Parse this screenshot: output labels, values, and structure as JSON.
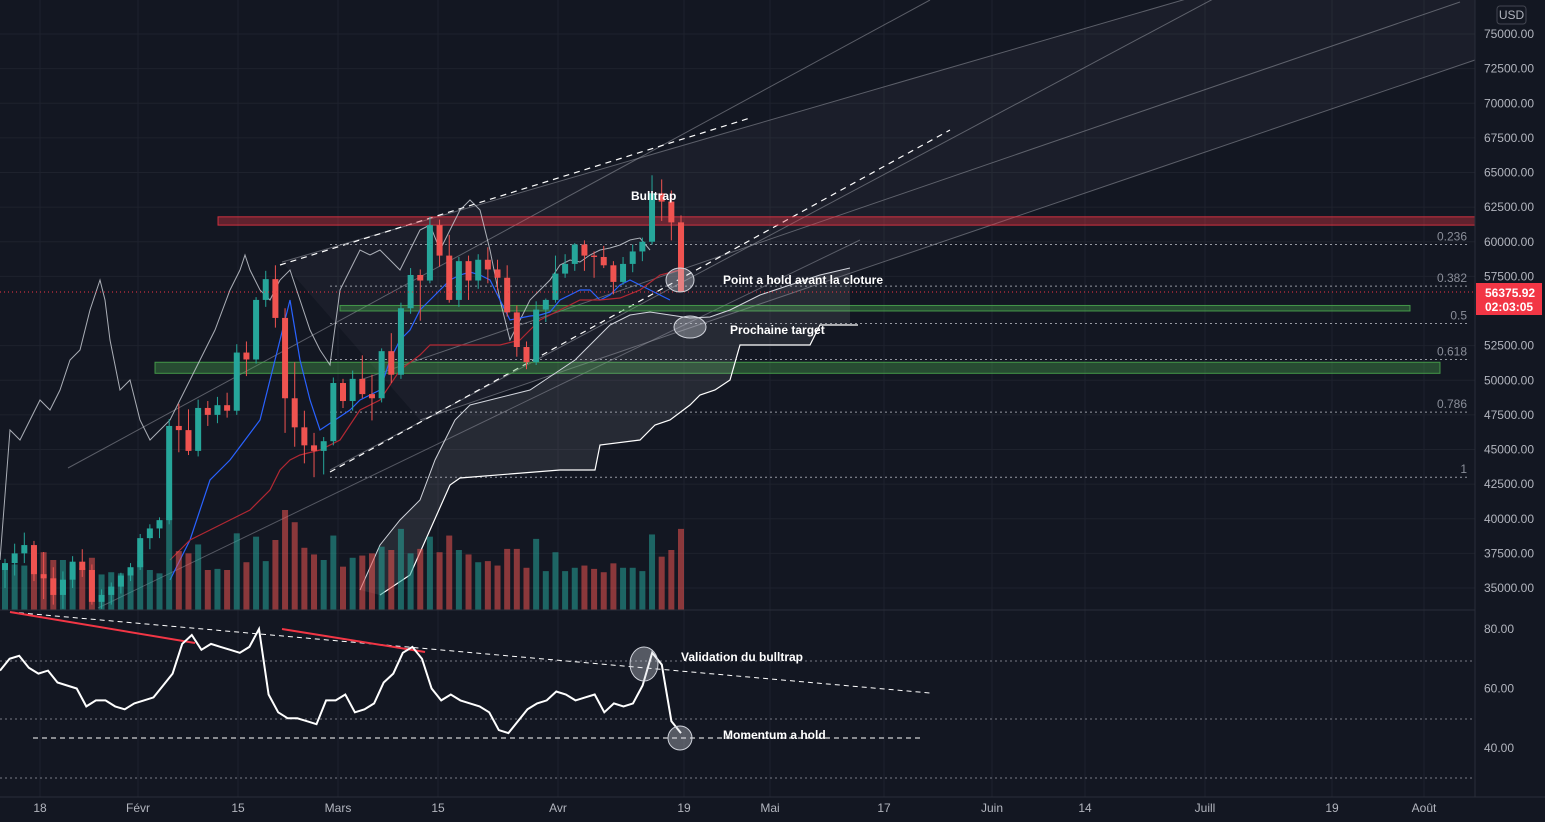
{
  "currency_badge": "USD",
  "chart_data": [
    {
      "type": "candlestick",
      "title": "",
      "y_axis": {
        "ticks": [
          "75000.00",
          "72500.00",
          "70000.00",
          "67500.00",
          "65000.00",
          "62500.00",
          "60000.00",
          "57500.00",
          "52500.00",
          "50000.00",
          "47500.00",
          "45000.00",
          "42500.00",
          "40000.00",
          "37500.00",
          "35000.00"
        ],
        "range": [
          33700,
          76700
        ],
        "position": "right"
      },
      "x_axis": {
        "ticks": [
          "18",
          "Févr",
          "15",
          "Mars",
          "15",
          "Avr",
          "19",
          "Mai",
          "17",
          "Juin",
          "14",
          "Juill",
          "19",
          "Août"
        ]
      },
      "current_price": {
        "value": 56375.92,
        "label": "56375.92",
        "countdown": "02:03:05",
        "color": "#f23645"
      },
      "fib_levels": [
        {
          "label": "0.236",
          "value": 59800
        },
        {
          "label": "0.382",
          "value": 56800
        },
        {
          "label": "0.5",
          "value": 54100
        },
        {
          "label": "0.618",
          "value": 51500
        },
        {
          "label": "0.786",
          "value": 47700
        },
        {
          "label": "1",
          "value": 43000
        }
      ],
      "zones": [
        {
          "name": "resistance",
          "low": 61200,
          "high": 61800,
          "color": "#f23645"
        },
        {
          "name": "support-upper",
          "low": 55000,
          "high": 55400,
          "color": "#4caf50"
        },
        {
          "name": "support-lower",
          "low": 50500,
          "high": 51300,
          "color": "#4caf50"
        }
      ],
      "annotations": [
        {
          "text": "Bulltrap"
        },
        {
          "text": "Point a hold avant la cloture"
        },
        {
          "text": "Prochaine target"
        }
      ],
      "candles_approx": {
        "note_values": "daily OHLC approximated from image",
        "series": [
          [
            36300,
            37100,
            35000,
            36800
          ],
          [
            36800,
            38200,
            35900,
            37500
          ],
          [
            37500,
            39000,
            36800,
            38100
          ],
          [
            38100,
            38400,
            35500,
            36000
          ],
          [
            36000,
            37600,
            34200,
            35700
          ],
          [
            35700,
            36500,
            33800,
            34500
          ],
          [
            34500,
            36200,
            33500,
            35600
          ],
          [
            35600,
            37300,
            35000,
            36900
          ],
          [
            36900,
            37800,
            35800,
            36300
          ],
          [
            36300,
            36700,
            33800,
            34000
          ],
          [
            34000,
            34900,
            33500,
            34500
          ],
          [
            34500,
            35400,
            33800,
            35100
          ],
          [
            35100,
            36100,
            34600,
            35900
          ],
          [
            35900,
            36800,
            35500,
            36500
          ],
          [
            36500,
            38900,
            36300,
            38600
          ],
          [
            38600,
            39600,
            37800,
            39300
          ],
          [
            39300,
            40100,
            38600,
            39900
          ],
          [
            39900,
            47200,
            39600,
            46700
          ],
          [
            46700,
            48300,
            44800,
            46400
          ],
          [
            46400,
            47900,
            44600,
            44900
          ],
          [
            44900,
            48600,
            44500,
            48000
          ],
          [
            48000,
            48500,
            46700,
            47500
          ],
          [
            47500,
            48800,
            46900,
            48200
          ],
          [
            48200,
            49100,
            47300,
            47800
          ],
          [
            47800,
            52600,
            47500,
            52000
          ],
          [
            52000,
            52800,
            50300,
            51500
          ],
          [
            51500,
            56000,
            51200,
            55800
          ],
          [
            55800,
            57900,
            55300,
            57300
          ],
          [
            57300,
            58300,
            53800,
            54500
          ],
          [
            54500,
            55200,
            46200,
            48700
          ],
          [
            48700,
            51300,
            45200,
            46600
          ],
          [
            46600,
            47800,
            44000,
            45300
          ],
          [
            45300,
            46200,
            43000,
            44900
          ],
          [
            44900,
            45900,
            43200,
            45600
          ],
          [
            45600,
            50200,
            45300,
            49800
          ],
          [
            49800,
            50100,
            48000,
            48500
          ],
          [
            48500,
            50700,
            47800,
            50100
          ],
          [
            50100,
            51800,
            48700,
            49000
          ],
          [
            49000,
            50400,
            47100,
            48700
          ],
          [
            48700,
            52300,
            48400,
            52100
          ],
          [
            52100,
            53400,
            49800,
            50400
          ],
          [
            50400,
            55600,
            50100,
            55200
          ],
          [
            55200,
            58100,
            54800,
            57600
          ],
          [
            57600,
            58000,
            54300,
            57200
          ],
          [
            57200,
            61800,
            57000,
            61200
          ],
          [
            61200,
            61600,
            58200,
            59000
          ],
          [
            59000,
            60500,
            55600,
            55800
          ],
          [
            55800,
            58900,
            55300,
            58600
          ],
          [
            58600,
            59000,
            55800,
            57200
          ],
          [
            57200,
            59100,
            56600,
            58700
          ],
          [
            58700,
            59600,
            57000,
            58000
          ],
          [
            58000,
            58700,
            56500,
            57400
          ],
          [
            57400,
            58300,
            54600,
            54900
          ],
          [
            54900,
            55400,
            51700,
            52400
          ],
          [
            52400,
            52800,
            50800,
            51300
          ],
          [
            51300,
            55700,
            51100,
            55100
          ],
          [
            55100,
            55900,
            54200,
            55800
          ],
          [
            55800,
            59000,
            55600,
            57700
          ],
          [
            57700,
            59100,
            57400,
            58400
          ],
          [
            58400,
            59900,
            57900,
            59800
          ],
          [
            59800,
            60100,
            57900,
            59000
          ],
          [
            59000,
            59300,
            57400,
            58900
          ],
          [
            58900,
            59700,
            58100,
            58300
          ],
          [
            58300,
            58600,
            56200,
            57100
          ],
          [
            57100,
            58900,
            56900,
            58400
          ],
          [
            58400,
            59800,
            57800,
            59300
          ],
          [
            59300,
            60300,
            58600,
            60000
          ],
          [
            60000,
            64800,
            59800,
            63500
          ],
          [
            63500,
            64500,
            61500,
            62900
          ],
          [
            62900,
            63700,
            60100,
            61400
          ],
          [
            61400,
            61900,
            56400,
            56376
          ]
        ]
      }
    },
    {
      "type": "line",
      "title": "",
      "y_axis": {
        "ticks": [
          "80.00",
          "60.00",
          "40.00"
        ],
        "range": [
          30,
          90
        ]
      },
      "annotations": [
        {
          "text": "Validation du bulltrap"
        },
        {
          "text": "Momentum a hold"
        }
      ],
      "series": [
        {
          "values": [
            66,
            70,
            71,
            67,
            65,
            66,
            62,
            61,
            60,
            54,
            56,
            56,
            54,
            53,
            55,
            56,
            57,
            61,
            65,
            75,
            78,
            73,
            75,
            74,
            73,
            72,
            74,
            80,
            58,
            52,
            50,
            50,
            49,
            48,
            56,
            56,
            58,
            52,
            53,
            55,
            62,
            65,
            72,
            74,
            70,
            60,
            56,
            58,
            56,
            55,
            54,
            52,
            46,
            45,
            49,
            53,
            55,
            56,
            59,
            58,
            56,
            57,
            58,
            52,
            55,
            54,
            55,
            61,
            72,
            68,
            49,
            45
          ]
        }
      ]
    }
  ]
}
